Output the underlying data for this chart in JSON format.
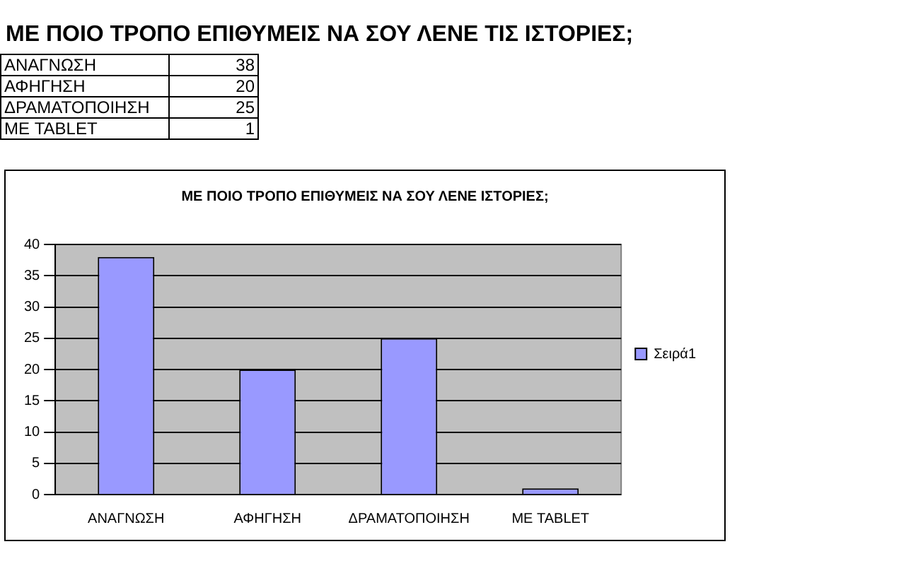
{
  "chart_data": [
    {
      "type": "other",
      "title": "ΜΕ ΠΟΙΟ ΤΡΟΠΟ ΕΠΙΘΥΜΕΙΣ ΝΑ ΣΟΥ ΛΕΝΕ ΤΙΣ ΙΣΤΟΡΙΕΣ;",
      "categories": [
        "ΑΝΑΓΝΩΣΗ",
        "ΑΦΗΓΗΣΗ",
        "ΔΡΑΜΑΤΟΠΟΙΗΣΗ",
        "ΜΕ TABLET"
      ],
      "values": [
        38,
        20,
        25,
        1
      ],
      "data_labels": true
    },
    {
      "type": "bar",
      "title": "ΜΕ ΠΟΙΟ ΤΡΟΠΟ ΕΠΙΘΥΜΕΙΣ ΝΑ ΣΟΥ ΛΕΝΕ ΙΣΤΟΡΙΕΣ;",
      "categories": [
        "ΑΝΑΓΝΩΣΗ",
        "ΑΦΗΓΗΣΗ",
        "ΔΡΑΜΑΤΟΠΟΙΗΣΗ",
        "ΜΕ TABLET"
      ],
      "series": [
        {
          "name": "Σειρά1",
          "color": "#9999ff",
          "values": [
            38,
            20,
            25,
            1
          ]
        }
      ],
      "ylim": [
        0,
        40
      ],
      "yticks": [
        0,
        5,
        10,
        15,
        20,
        25,
        30,
        35,
        40
      ],
      "grid": "y",
      "legend": "right"
    }
  ]
}
